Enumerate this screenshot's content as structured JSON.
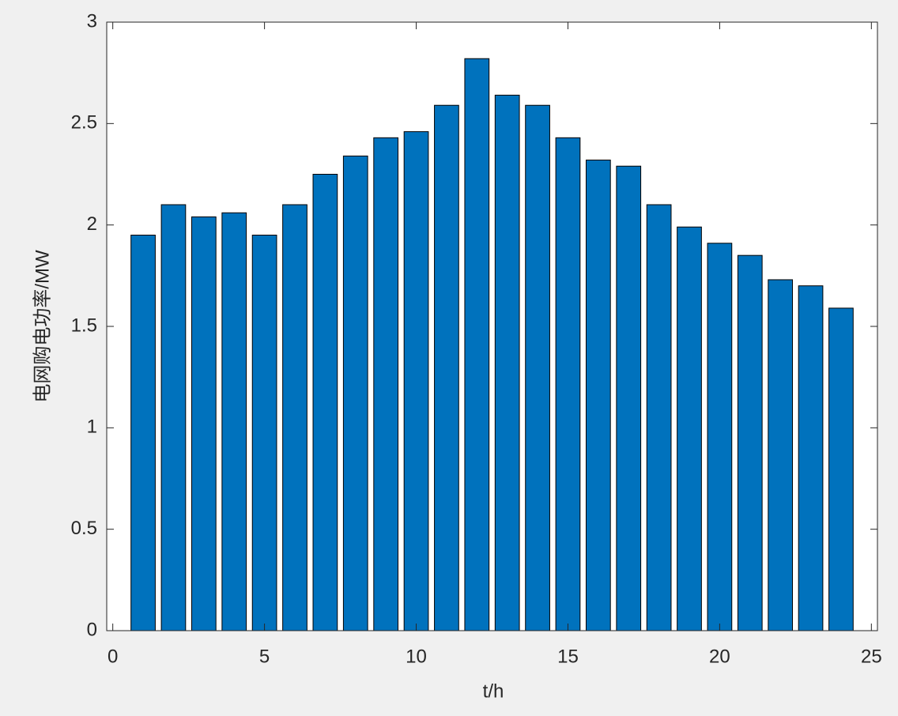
{
  "chart_data": {
    "type": "bar",
    "x": [
      1,
      2,
      3,
      4,
      5,
      6,
      7,
      8,
      9,
      10,
      11,
      12,
      13,
      14,
      15,
      16,
      17,
      18,
      19,
      20,
      21,
      22,
      23,
      24
    ],
    "values": [
      1.95,
      2.1,
      2.04,
      2.06,
      1.95,
      2.1,
      2.25,
      2.34,
      2.43,
      2.46,
      2.59,
      2.82,
      2.64,
      2.59,
      2.43,
      2.32,
      2.29,
      2.1,
      1.99,
      1.91,
      1.85,
      1.73,
      1.7,
      1.59
    ],
    "color": "#0072bd",
    "xlim": [
      -0.2,
      25.2
    ],
    "xticks": [
      0,
      5,
      10,
      15,
      20,
      25
    ],
    "ylim": [
      0,
      3
    ],
    "yticks": [
      0,
      0.5,
      1,
      1.5,
      2,
      2.5,
      3
    ],
    "xlabel": "t/h",
    "ylabel": "电网购电功率/MW"
  }
}
